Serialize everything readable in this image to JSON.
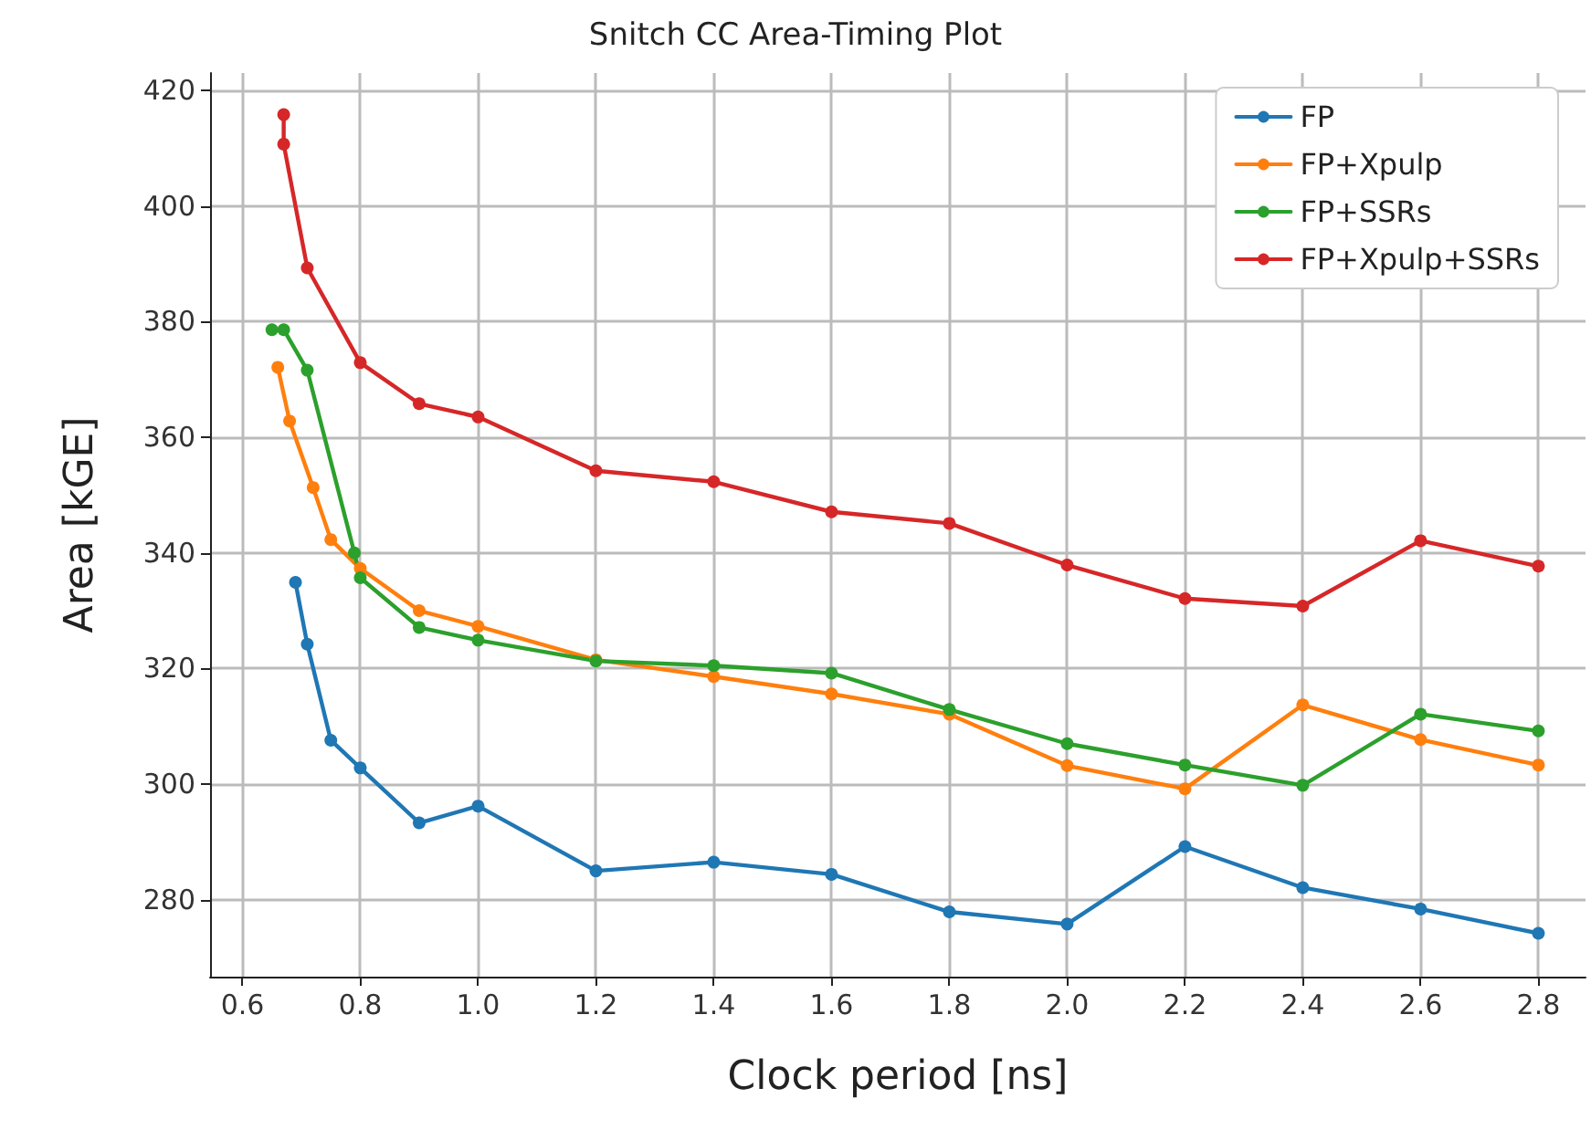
{
  "chart_data": {
    "type": "line",
    "title": "Snitch CC Area-Timing Plot",
    "xlabel": "Clock period [ns]",
    "ylabel": "Area [kGE]",
    "xlim": [
      0.545,
      2.88
    ],
    "xticks": [
      0.6,
      0.8,
      {
        "value": 1.0,
        "label": "1.0"
      },
      1.2,
      1.4,
      1.6,
      1.8,
      {
        "value": 2.0,
        "label": "2.0"
      },
      2.2,
      2.4,
      2.6,
      2.8
    ],
    "ylim": [
      266.7,
      423
    ],
    "yticks": [
      280,
      300,
      320,
      340,
      360,
      380,
      400,
      420
    ],
    "grid": true,
    "legend": "top right",
    "marker": "circle",
    "line_style": "solid",
    "series": [
      {
        "name": "FP",
        "color": "#1f77b4",
        "x": [
          0.69,
          0.71,
          0.75,
          0.8,
          0.9,
          1.0,
          1.2,
          1.4,
          1.6,
          1.8,
          2.0,
          2.2,
          2.4,
          2.6,
          2.8
        ],
        "values": [
          334.9,
          324.2,
          307.6,
          302.8,
          293.3,
          296.2,
          285,
          286.5,
          284.4,
          277.9,
          275.8,
          289.2,
          282.1,
          278.4,
          274.2
        ]
      },
      {
        "name": "FP+Xpulp",
        "color": "#ff7f0e",
        "x": [
          0.66,
          0.68,
          0.72,
          0.75,
          0.8,
          0.9,
          1.0,
          1.2,
          1.4,
          1.6,
          1.8,
          2.0,
          2.2,
          2.4,
          2.6,
          2.8
        ],
        "values": [
          372.1,
          362.8,
          351.3,
          342.3,
          337.3,
          330,
          327.3,
          321.5,
          318.6,
          315.6,
          312.1,
          303.2,
          299.2,
          313.7,
          307.7,
          303.3
        ]
      },
      {
        "name": "FP+SSRs",
        "color": "#2ca02c",
        "x": [
          0.65,
          0.67,
          0.71,
          0.79,
          0.8,
          0.9,
          1.0,
          1.2,
          1.4,
          1.6,
          1.8,
          2.0,
          2.2,
          2.4,
          2.6,
          2.8
        ],
        "values": [
          378.6,
          378.6,
          371.6,
          340,
          335.7,
          327.1,
          324.9,
          321.3,
          320.5,
          319.2,
          312.9,
          307,
          303.3,
          299.8,
          312.1,
          309.2
        ]
      },
      {
        "name": "FP+Xpulp+SSRs",
        "color": "#d62728",
        "x": [
          0.67,
          0.67,
          0.71,
          0.8,
          0.9,
          1.0,
          1.2,
          1.4,
          1.6,
          1.8,
          2.0,
          2.2,
          2.4,
          2.6,
          2.8
        ],
        "values": [
          415.8,
          410.7,
          389.3,
          372.9,
          365.8,
          363.5,
          354.2,
          352.3,
          347.1,
          345.1,
          337.9,
          332.1,
          330.8,
          342.1,
          337.7
        ]
      }
    ]
  }
}
